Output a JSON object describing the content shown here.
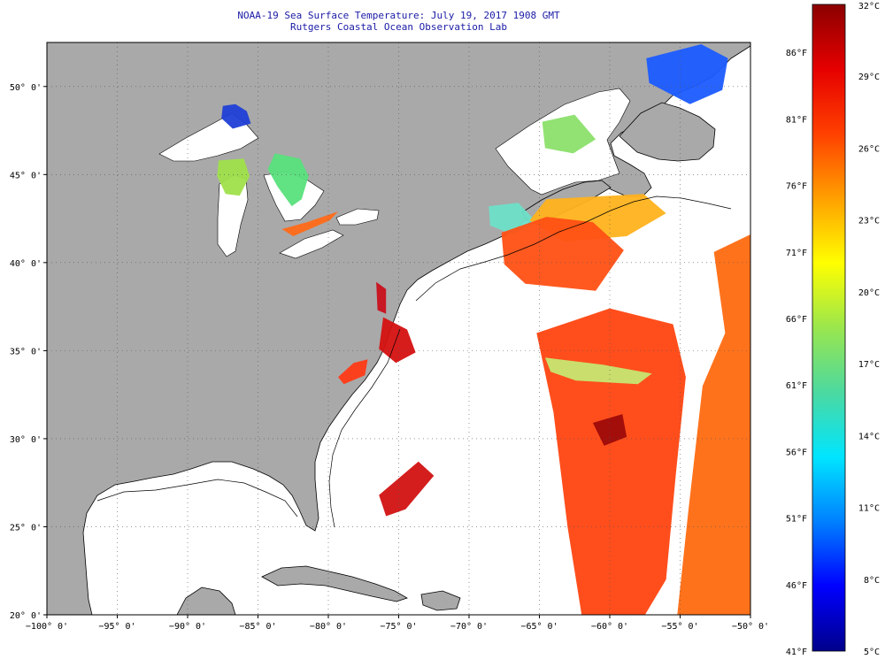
{
  "title": {
    "line1": "NOAA-19 Sea Surface Temperature:  July 19, 2017 1908 GMT",
    "line2": "Rutgers Coastal Ocean Observation Lab"
  },
  "map": {
    "lon_range": [
      -100,
      -50
    ],
    "lat_range": [
      20,
      52.5
    ],
    "lon_ticks": [
      {
        "value": -100,
        "label": "−100° 0'"
      },
      {
        "value": -95,
        "label": "−95° 0'"
      },
      {
        "value": -90,
        "label": "−90° 0'"
      },
      {
        "value": -85,
        "label": "−85° 0'"
      },
      {
        "value": -80,
        "label": "−80° 0'"
      },
      {
        "value": -75,
        "label": "−75° 0'"
      },
      {
        "value": -70,
        "label": "−70° 0'"
      },
      {
        "value": -65,
        "label": "−65° 0'"
      },
      {
        "value": -60,
        "label": "−60° 0'"
      },
      {
        "value": -55,
        "label": "−55° 0'"
      },
      {
        "value": -50,
        "label": "−50° 0'"
      }
    ],
    "lat_ticks": [
      {
        "value": 20,
        "label": "20° 0'"
      },
      {
        "value": 25,
        "label": "25° 0'"
      },
      {
        "value": 30,
        "label": "30° 0'"
      },
      {
        "value": 35,
        "label": "35° 0'"
      },
      {
        "value": 40,
        "label": "40° 0'"
      },
      {
        "value": 45,
        "label": "45° 0'"
      },
      {
        "value": 50,
        "label": "50° 0'"
      }
    ],
    "colors": {
      "land": "#a9a9a9",
      "ocean_nodata": "#ffffff",
      "grid": "#555555",
      "coast": "#000000"
    }
  },
  "colorbar": {
    "min_c": 5,
    "max_c": 32,
    "celsius_ticks": [
      {
        "value": 32,
        "label": "32°C"
      },
      {
        "value": 29,
        "label": "29°C"
      },
      {
        "value": 26,
        "label": "26°C"
      },
      {
        "value": 23,
        "label": "23°C"
      },
      {
        "value": 20,
        "label": "20°C"
      },
      {
        "value": 17,
        "label": "17°C"
      },
      {
        "value": 14,
        "label": "14°C"
      },
      {
        "value": 11,
        "label": "11°C"
      },
      {
        "value": 8,
        "label": "8°C"
      },
      {
        "value": 5,
        "label": "5°C"
      }
    ],
    "fahrenheit_ticks": [
      {
        "value": 86,
        "label": "86°F"
      },
      {
        "value": 81,
        "label": "81°F"
      },
      {
        "value": 76,
        "label": "76°F"
      },
      {
        "value": 71,
        "label": "71°F"
      },
      {
        "value": 66,
        "label": "66°F"
      },
      {
        "value": 61,
        "label": "61°F"
      },
      {
        "value": 56,
        "label": "56°F"
      },
      {
        "value": 51,
        "label": "51°F"
      },
      {
        "value": 46,
        "label": "46°F"
      },
      {
        "value": 41,
        "label": "41°F"
      }
    ],
    "gradient_stops": [
      "#00008b",
      "#0000ff",
      "#0080ff",
      "#00e5ff",
      "#4cd9a0",
      "#9ae64d",
      "#ffff00",
      "#ffa000",
      "#ff4000",
      "#e60000",
      "#8b0000"
    ]
  },
  "sst_regions": [
    {
      "name": "lake-superior-cold",
      "color": "#1f3fd6",
      "points": [
        [
          -87.5,
          48.9
        ],
        [
          -86.6,
          49.0
        ],
        [
          -85.8,
          48.6
        ],
        [
          -85.5,
          47.9
        ],
        [
          -86.8,
          47.6
        ],
        [
          -87.6,
          48.2
        ]
      ]
    },
    {
      "name": "lake-huron",
      "color": "#58e07c",
      "points": [
        [
          -83.8,
          46.2
        ],
        [
          -82.0,
          45.9
        ],
        [
          -81.4,
          44.9
        ],
        [
          -81.9,
          43.6
        ],
        [
          -82.6,
          43.2
        ],
        [
          -83.6,
          44.3
        ],
        [
          -84.3,
          45.3
        ]
      ]
    },
    {
      "name": "lake-michigan",
      "color": "#9fe04a",
      "points": [
        [
          -87.8,
          45.8
        ],
        [
          -86.0,
          45.9
        ],
        [
          -85.6,
          44.9
        ],
        [
          -86.3,
          43.8
        ],
        [
          -87.3,
          43.9
        ],
        [
          -87.9,
          44.9
        ]
      ]
    },
    {
      "name": "lake-erie",
      "color": "#ff6a18",
      "points": [
        [
          -83.3,
          41.9
        ],
        [
          -81.5,
          42.3
        ],
        [
          -79.3,
          42.9
        ],
        [
          -79.9,
          42.4
        ],
        [
          -82.5,
          41.5
        ]
      ]
    },
    {
      "name": "gulf-st-lawrence",
      "color": "#8be06a",
      "points": [
        [
          -64.8,
          48.0
        ],
        [
          -62.5,
          48.4
        ],
        [
          -61.0,
          47.0
        ],
        [
          -62.6,
          46.2
        ],
        [
          -64.6,
          46.5
        ]
      ]
    },
    {
      "name": "labrador-cold",
      "color": "#1b5bff",
      "points": [
        [
          -57.4,
          51.6
        ],
        [
          -53.5,
          52.4
        ],
        [
          -51.6,
          51.6
        ],
        [
          -52.0,
          49.8
        ],
        [
          -54.3,
          49.0
        ],
        [
          -57.2,
          50.2
        ]
      ]
    },
    {
      "name": "gulf-of-maine-cool",
      "color": "#6de0c8",
      "points": [
        [
          -68.6,
          43.2
        ],
        [
          -66.5,
          43.4
        ],
        [
          -65.2,
          42.3
        ],
        [
          -66.9,
          41.6
        ],
        [
          -68.5,
          42.1
        ]
      ]
    },
    {
      "name": "scotian-shelf-warm",
      "color": "#ffb21c",
      "points": [
        [
          -64.5,
          43.6
        ],
        [
          -57.6,
          43.9
        ],
        [
          -56.0,
          42.8
        ],
        [
          -58.8,
          41.5
        ],
        [
          -63.2,
          41.2
        ],
        [
          -65.7,
          42.4
        ]
      ]
    },
    {
      "name": "gulf-stream-north",
      "color": "#ff5014",
      "points": [
        [
          -67.7,
          41.7
        ],
        [
          -64.5,
          42.6
        ],
        [
          -61.2,
          42.3
        ],
        [
          -59.0,
          40.7
        ],
        [
          -61.0,
          38.4
        ],
        [
          -66.0,
          38.8
        ],
        [
          -67.5,
          39.9
        ]
      ]
    },
    {
      "name": "cape-hatteras",
      "color": "#d51010",
      "points": [
        [
          -76.1,
          36.9
        ],
        [
          -74.4,
          36.2
        ],
        [
          -73.8,
          34.9
        ],
        [
          -75.2,
          34.3
        ],
        [
          -76.4,
          35.1
        ]
      ]
    },
    {
      "name": "chesapeake",
      "color": "#c8101c",
      "points": [
        [
          -76.6,
          38.9
        ],
        [
          -75.9,
          38.5
        ],
        [
          -75.9,
          37.1
        ],
        [
          -76.5,
          37.3
        ]
      ]
    },
    {
      "name": "southeast-shelf",
      "color": "#ff3a16",
      "points": [
        [
          -78.2,
          34.3
        ],
        [
          -77.2,
          34.5
        ],
        [
          -77.4,
          33.6
        ],
        [
          -78.9,
          33.1
        ],
        [
          -79.3,
          33.5
        ]
      ]
    },
    {
      "name": "bahamas-warm",
      "color": "#d21212",
      "points": [
        [
          -76.4,
          26.8
        ],
        [
          -73.6,
          28.7
        ],
        [
          -72.5,
          27.9
        ],
        [
          -74.5,
          26.0
        ],
        [
          -75.9,
          25.6
        ]
      ]
    },
    {
      "name": "sargasso-main",
      "color": "#ff4410",
      "points": [
        [
          -65.2,
          36.0
        ],
        [
          -60.0,
          37.4
        ],
        [
          -55.5,
          36.5
        ],
        [
          -54.6,
          33.5
        ],
        [
          -55.3,
          28.0
        ],
        [
          -56.0,
          22.0
        ],
        [
          -57.5,
          20.0
        ],
        [
          -62.0,
          20.0
        ],
        [
          -63.0,
          25.0
        ],
        [
          -64.0,
          31.5
        ]
      ]
    },
    {
      "name": "sargasso-east",
      "color": "#ff6a10",
      "points": [
        [
          -52.6,
          40.6
        ],
        [
          -50.0,
          41.6
        ],
        [
          -50.0,
          20.0
        ],
        [
          -55.2,
          20.0
        ],
        [
          -54.4,
          26.0
        ],
        [
          -53.4,
          33.0
        ],
        [
          -51.8,
          36.0
        ]
      ]
    },
    {
      "name": "eddy-core",
      "color": "#9e0a0a",
      "points": [
        [
          -61.2,
          30.9
        ],
        [
          -59.1,
          31.4
        ],
        [
          -58.8,
          30.1
        ],
        [
          -60.4,
          29.6
        ]
      ]
    },
    {
      "name": "cool-filament",
      "color": "#c6e672",
      "points": [
        [
          -64.6,
          34.6
        ],
        [
          -60.5,
          34.2
        ],
        [
          -57.0,
          33.7
        ],
        [
          -58.0,
          33.1
        ],
        [
          -62.4,
          33.3
        ],
        [
          -64.2,
          33.8
        ]
      ]
    }
  ]
}
